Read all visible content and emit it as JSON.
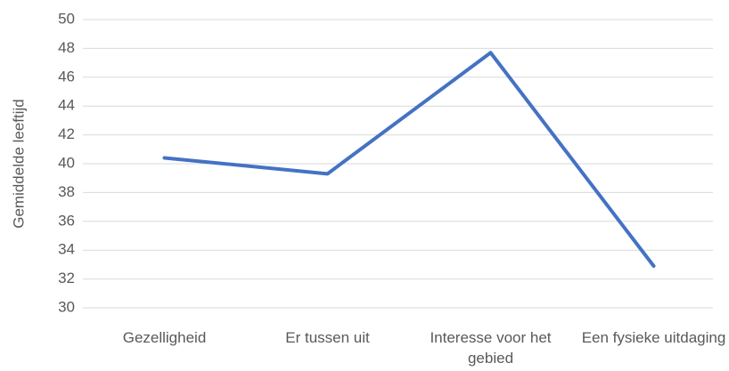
{
  "chart_data": {
    "type": "line",
    "y_label": "Gemiddelde leeftijd",
    "categories": [
      "Gezelligheid",
      "Er tussen uit",
      "Interesse voor het gebied",
      "Een fysieke uitdaging"
    ],
    "series": [
      {
        "color": "#4472c4",
        "values": [
          40.4,
          39.3,
          47.7,
          32.9
        ]
      }
    ],
    "ylim": [
      30,
      50
    ],
    "yticks": [
      30,
      32,
      34,
      36,
      38,
      40,
      42,
      44,
      46,
      48,
      50
    ],
    "grid": true
  }
}
